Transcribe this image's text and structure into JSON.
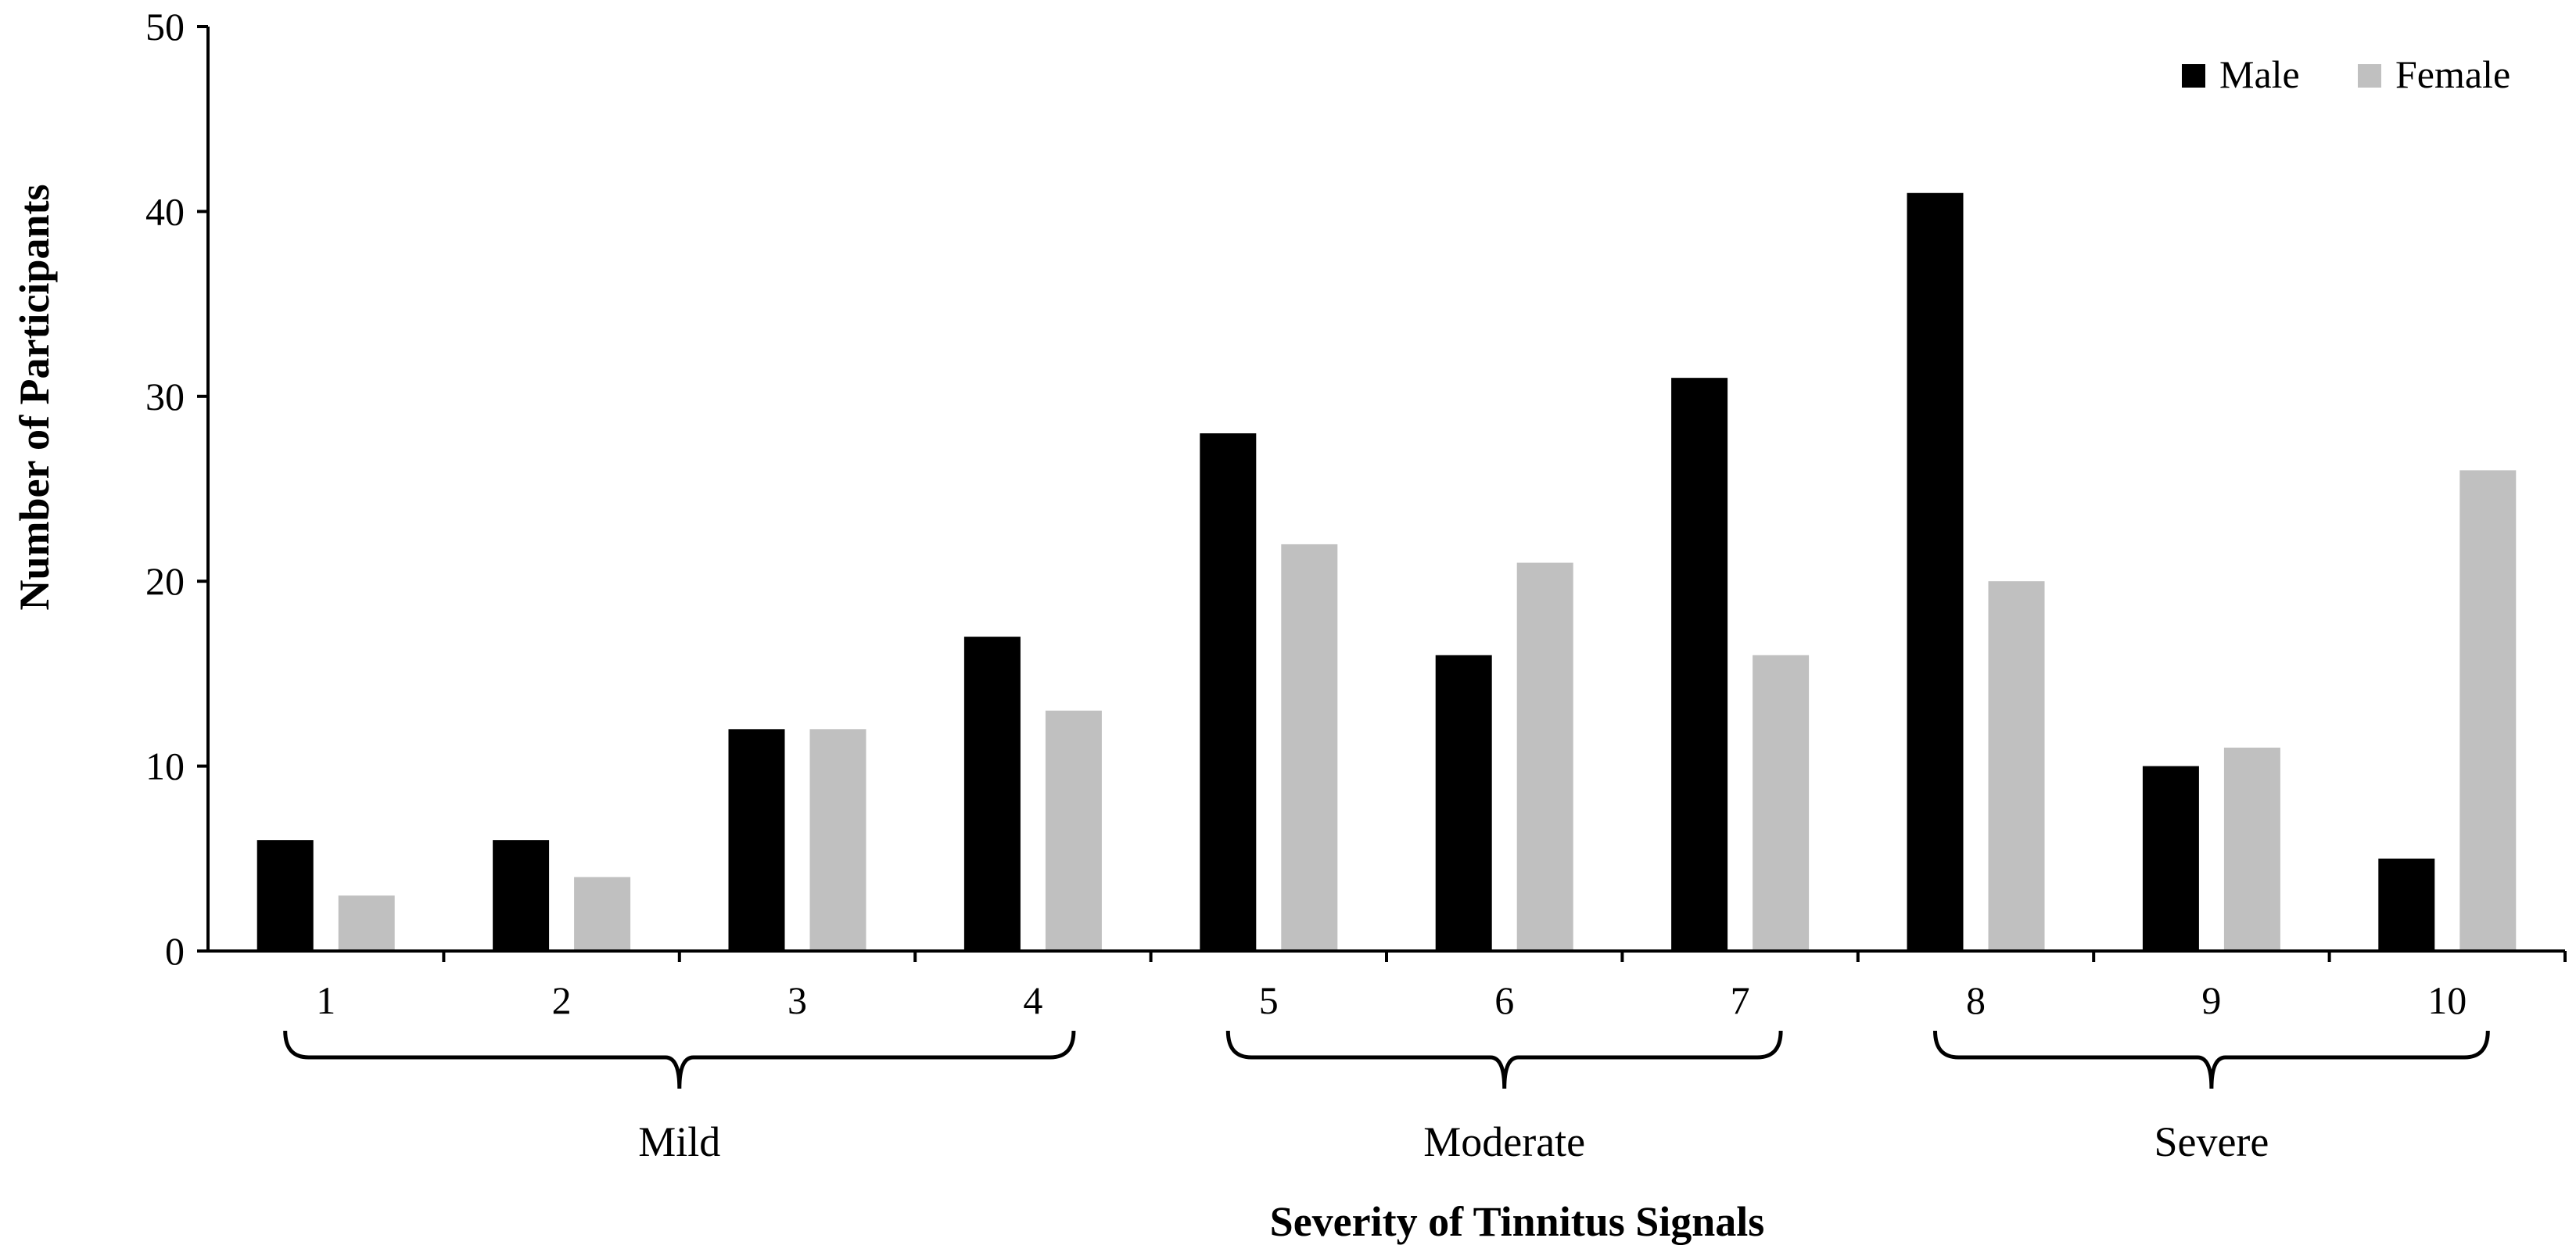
{
  "chart_data": {
    "type": "bar",
    "title": "",
    "xlabel": "Severity of Tinnitus Signals",
    "ylabel": "Number of Participants",
    "categories": [
      "1",
      "2",
      "3",
      "4",
      "5",
      "6",
      "7",
      "8",
      "9",
      "10"
    ],
    "series": [
      {
        "name": "Male",
        "color": "#000000",
        "values": [
          6,
          6,
          12,
          17,
          28,
          16,
          31,
          41,
          10,
          5
        ]
      },
      {
        "name": "Female",
        "color": "#c0c0c0",
        "values": [
          3,
          4,
          12,
          13,
          22,
          21,
          16,
          20,
          11,
          26
        ]
      }
    ],
    "ylim": [
      0,
      50
    ],
    "yticks": [
      0,
      10,
      20,
      30,
      40,
      50
    ],
    "grid": false,
    "legend_position": "top-right",
    "groups": [
      {
        "label": "Mild",
        "from": "1",
        "to": "4"
      },
      {
        "label": "Moderate",
        "from": "5",
        "to": "7"
      },
      {
        "label": "Severe",
        "from": "8",
        "to": "10"
      }
    ]
  }
}
